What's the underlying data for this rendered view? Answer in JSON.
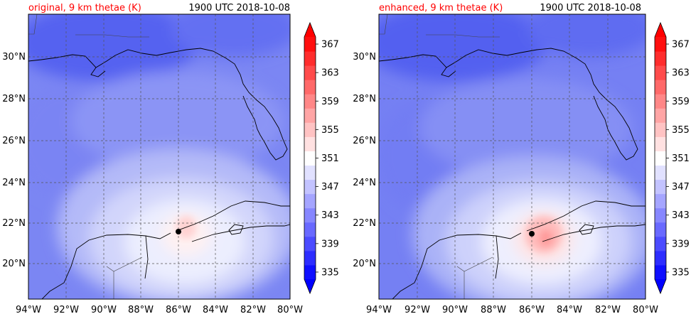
{
  "figure": {
    "panels": [
      {
        "title_left": "original, 9 km thetae (K)",
        "title_right": "1900 UTC 2018-10-08",
        "title_left_color": "#ff0000",
        "lat_ticks": [
          "20°N",
          "22°N",
          "24°N",
          "26°N",
          "28°N",
          "30°N"
        ],
        "lon_ticks": [
          "94°W",
          "92°W",
          "90°W",
          "88°W",
          "86°W",
          "84°W",
          "82°W",
          "80°W"
        ],
        "storm_center": {
          "lon": -86.0,
          "lat": 21.6
        },
        "warm_core": "weak"
      },
      {
        "title_left": "enhanced, 9 km thetae (K)",
        "title_right": "1900 UTC 2018-10-08",
        "title_left_color": "#ff0000",
        "lat_ticks": [
          "20°N",
          "22°N",
          "24°N",
          "26°N",
          "28°N",
          "30°N"
        ],
        "lon_ticks": [
          "94°W",
          "92°W",
          "90°W",
          "88°W",
          "86°W",
          "84°W",
          "82°W",
          "80°W"
        ],
        "storm_center": {
          "lon": -85.8,
          "lat": 21.5
        },
        "warm_core": "strong"
      }
    ],
    "colorbar": {
      "tick_labels": [
        "335",
        "339",
        "343",
        "347",
        "351",
        "355",
        "359",
        "363",
        "367"
      ],
      "levels": [
        335,
        337,
        339,
        341,
        343,
        345,
        347,
        349,
        351,
        353,
        355,
        357,
        359,
        361,
        363,
        365,
        367,
        369
      ],
      "colormap": "bwr",
      "extend": "both"
    }
  },
  "chart_data": [
    {
      "type": "heatmap",
      "title": "original, 9 km thetae (K)",
      "subtitle": "1900 UTC 2018-10-08",
      "xlim": [
        -94,
        -80
      ],
      "ylim": [
        18,
        32
      ],
      "x_ticks": [
        -94,
        -92,
        -90,
        -88,
        -86,
        -84,
        -82,
        -80
      ],
      "y_ticks": [
        20,
        22,
        24,
        26,
        28,
        30
      ],
      "grid": true,
      "colorbar_range": [
        335,
        369
      ],
      "marker": {
        "lon": -86.0,
        "lat": 21.6
      }
    },
    {
      "type": "heatmap",
      "title": "enhanced, 9 km thetae (K)",
      "subtitle": "1900 UTC 2018-10-08",
      "xlim": [
        -94,
        -80
      ],
      "ylim": [
        18,
        32
      ],
      "x_ticks": [
        -94,
        -92,
        -90,
        -88,
        -86,
        -84,
        -82,
        -80
      ],
      "y_ticks": [
        20,
        22,
        24,
        26,
        28,
        30
      ],
      "grid": true,
      "colorbar_range": [
        335,
        369
      ],
      "marker": {
        "lon": -85.8,
        "lat": 21.5
      }
    }
  ]
}
